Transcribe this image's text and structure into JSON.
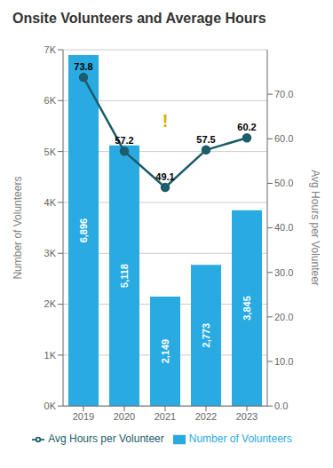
{
  "chart_data": {
    "type": "bar",
    "title": "Onsite Volunteers and Average Hours",
    "categories": [
      "2019",
      "2020",
      "2021",
      "2022",
      "2023"
    ],
    "series": [
      {
        "name": "Number of Volunteers",
        "type": "bar",
        "color": "#29ABE2",
        "values": [
          6896,
          5118,
          2149,
          2773,
          3845
        ],
        "value_labels": [
          "6,896",
          "5,118",
          "2,149",
          "2,773",
          "3,845"
        ]
      },
      {
        "name": "Avg Hours per Volunteer",
        "type": "line",
        "axis": "y2",
        "color": "#1D5C6B",
        "marker": "circle",
        "values": [
          73.8,
          57.2,
          49.1,
          57.5,
          60.2
        ]
      }
    ],
    "ylabel": "Number of Volunteers",
    "y2label": "Avg Hours per Volunteer",
    "ylim": [
      0,
      7000
    ],
    "yticks": [
      {
        "value": 0,
        "label": "0K"
      },
      {
        "value": 1000,
        "label": "1K"
      },
      {
        "value": 2000,
        "label": "2K"
      },
      {
        "value": 3000,
        "label": "3K"
      },
      {
        "value": 4000,
        "label": "4K"
      },
      {
        "value": 5000,
        "label": "5K"
      },
      {
        "value": 6000,
        "label": "6K"
      },
      {
        "value": 7000,
        "label": "7K"
      }
    ],
    "y2lim": [
      0,
      80
    ],
    "y2ticks": [
      {
        "value": 0,
        "label": "0.0"
      },
      {
        "value": 10,
        "label": "10.0"
      },
      {
        "value": 20,
        "label": "20.0"
      },
      {
        "value": 30,
        "label": "30.0"
      },
      {
        "value": 40,
        "label": "40.0"
      },
      {
        "value": 50,
        "label": "50.0"
      },
      {
        "value": 60,
        "label": "60.0"
      },
      {
        "value": 70,
        "label": "70.0"
      }
    ],
    "grid": true,
    "legend": "bottom",
    "data_labels": true,
    "annotations": [
      {
        "text": "!",
        "x": "2021",
        "y": 5600,
        "color": "#D4AF00"
      }
    ]
  }
}
